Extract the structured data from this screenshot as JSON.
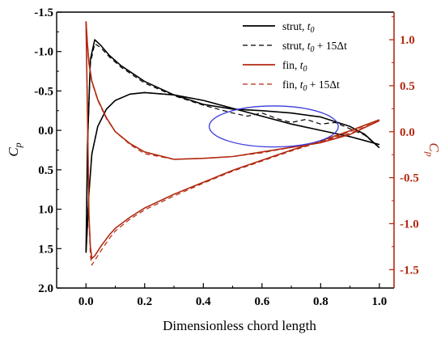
{
  "chart_data": {
    "type": "line",
    "xlabel": "Dimensionless chord length",
    "ylabel_left": "C",
    "ylabel_left_sub": "p",
    "ylabel_right": "C",
    "ylabel_right_sub": "p",
    "xlim": [
      -0.1,
      1.05
    ],
    "ylim_left": [
      2.0,
      -1.5
    ],
    "ylim_right": [
      -1.7,
      1.3
    ],
    "x_ticks": [
      "0.0",
      "0.2",
      "0.4",
      "0.6",
      "0.8",
      "1.0"
    ],
    "y_left_ticks": [
      "-1.5",
      "-1.0",
      "-0.5",
      "0.0",
      "0.5",
      "1.0",
      "1.5",
      "2.0"
    ],
    "y_right_ticks": [
      "1.0",
      "0.5",
      "0.0",
      "-0.5",
      "-1.0",
      "-1.5"
    ],
    "grid": false,
    "legend_position": "top-right",
    "colors": {
      "strut": "#000000",
      "fin": "#b22a10",
      "axis_right": "#b22a10",
      "highlight_ellipse": "#3a3adc"
    },
    "legend": [
      {
        "label": "strut, ",
        "sub_label": "t",
        "sub_index": "0",
        "suffix": "",
        "style": "solid",
        "color": "#000000"
      },
      {
        "label": "strut, ",
        "sub_label": "t",
        "sub_index": "0",
        "suffix": " + 15Δt",
        "style": "dashed",
        "color": "#000000"
      },
      {
        "label": "fin, ",
        "sub_label": "t",
        "sub_index": "0",
        "suffix": "",
        "style": "solid",
        "color": "#b22a10"
      },
      {
        "label": "fin, ",
        "sub_label": "t",
        "sub_index": "0",
        "suffix": " + 15Δt",
        "style": "dashed",
        "color": "#b22a10"
      }
    ],
    "series": [
      {
        "name": "strut, t0",
        "axis": "left",
        "style": "solid",
        "upper": {
          "x": [
            0.0,
            0.005,
            0.015,
            0.03,
            0.05,
            0.08,
            0.12,
            0.2,
            0.3,
            0.4,
            0.5,
            0.6,
            0.7,
            0.8,
            0.9,
            0.95,
            1.0
          ],
          "y": [
            1.55,
            0.2,
            -0.9,
            -1.15,
            -1.08,
            -0.95,
            -0.82,
            -0.62,
            -0.45,
            -0.33,
            -0.27,
            -0.25,
            -0.22,
            -0.17,
            -0.05,
            0.05,
            0.22
          ]
        },
        "lower": {
          "x": [
            0.0,
            0.005,
            0.01,
            0.02,
            0.04,
            0.07,
            0.1,
            0.15,
            0.2,
            0.3,
            0.4,
            0.5,
            0.6,
            0.7,
            0.8,
            0.9,
            1.0
          ],
          "y": [
            1.55,
            1.2,
            0.8,
            0.3,
            -0.05,
            -0.27,
            -0.38,
            -0.46,
            -0.48,
            -0.45,
            -0.38,
            -0.28,
            -0.18,
            -0.08,
            0.0,
            0.08,
            0.18
          ]
        }
      },
      {
        "name": "strut, t0 + 15Δt",
        "axis": "left",
        "style": "dashed",
        "upper": {
          "x": [
            0.0,
            0.005,
            0.015,
            0.03,
            0.05,
            0.08,
            0.12,
            0.2,
            0.3,
            0.4,
            0.5,
            0.55,
            0.6,
            0.65,
            0.7,
            0.75,
            0.8,
            0.85,
            0.9,
            0.95,
            1.0
          ],
          "y": [
            1.55,
            0.25,
            -0.85,
            -1.1,
            -1.05,
            -0.93,
            -0.8,
            -0.6,
            -0.44,
            -0.32,
            -0.22,
            -0.18,
            -0.22,
            -0.15,
            -0.1,
            -0.14,
            -0.08,
            -0.1,
            -0.02,
            0.06,
            0.22
          ]
        },
        "lower": {
          "x": [
            0.0,
            0.005,
            0.01,
            0.02,
            0.04,
            0.07,
            0.1,
            0.15,
            0.2,
            0.3,
            0.4,
            0.5,
            0.6,
            0.7,
            0.8,
            0.9,
            1.0
          ],
          "y": [
            1.55,
            1.2,
            0.8,
            0.3,
            -0.05,
            -0.27,
            -0.38,
            -0.46,
            -0.48,
            -0.45,
            -0.38,
            -0.28,
            -0.18,
            -0.08,
            0.0,
            0.08,
            0.18
          ]
        }
      },
      {
        "name": "fin, t0",
        "axis": "right",
        "style": "solid",
        "upper": {
          "x": [
            0.0,
            0.005,
            0.01,
            0.02,
            0.04,
            0.07,
            0.1,
            0.15,
            0.2,
            0.3,
            0.4,
            0.5,
            0.6,
            0.7,
            0.8,
            0.9,
            1.0
          ],
          "y": [
            1.2,
            0.95,
            0.75,
            0.55,
            0.35,
            0.15,
            0.0,
            -0.13,
            -0.22,
            -0.3,
            -0.29,
            -0.27,
            -0.22,
            -0.17,
            -0.12,
            -0.03,
            0.12
          ]
        },
        "lower": {
          "x": [
            0.0,
            0.005,
            0.01,
            0.015,
            0.02,
            0.03,
            0.05,
            0.08,
            0.1,
            0.15,
            0.2,
            0.3,
            0.4,
            0.5,
            0.6,
            0.7,
            0.8,
            0.9,
            1.0
          ],
          "y": [
            1.2,
            0.2,
            -0.9,
            -1.25,
            -1.38,
            -1.35,
            -1.25,
            -1.12,
            -1.05,
            -0.93,
            -0.83,
            -0.68,
            -0.55,
            -0.42,
            -0.31,
            -0.2,
            -0.1,
            0.01,
            0.13
          ]
        }
      },
      {
        "name": "fin, t0 + 15Δt",
        "axis": "right",
        "style": "dashed",
        "upper": {
          "x": [
            0.0,
            0.005,
            0.01,
            0.02,
            0.04,
            0.07,
            0.1,
            0.15,
            0.2,
            0.3,
            0.4,
            0.5,
            0.6,
            0.7,
            0.8,
            0.9,
            1.0
          ],
          "y": [
            1.2,
            0.95,
            0.74,
            0.54,
            0.34,
            0.14,
            0.0,
            -0.14,
            -0.24,
            -0.3,
            -0.29,
            -0.27,
            -0.23,
            -0.17,
            -0.11,
            -0.02,
            0.12
          ]
        },
        "lower": {
          "x": [
            0.0,
            0.005,
            0.01,
            0.015,
            0.02,
            0.03,
            0.05,
            0.08,
            0.1,
            0.15,
            0.2,
            0.3,
            0.4,
            0.5,
            0.6,
            0.7,
            0.8,
            0.9,
            1.0
          ],
          "y": [
            1.2,
            0.3,
            -0.95,
            -1.35,
            -1.45,
            -1.4,
            -1.3,
            -1.16,
            -1.08,
            -0.95,
            -0.85,
            -0.7,
            -0.56,
            -0.43,
            -0.32,
            -0.21,
            -0.11,
            0.0,
            0.13
          ]
        }
      }
    ],
    "annotations": [
      {
        "type": "ellipse",
        "center_x": 0.64,
        "center_y_left": -0.05,
        "rx_data": 0.22,
        "ry_data_left": 0.26,
        "color": "#3a3adc"
      }
    ]
  }
}
